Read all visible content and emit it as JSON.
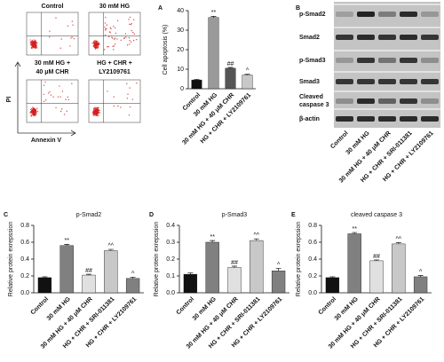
{
  "flow_cytometry": {
    "labels": [
      [
        "Control"
      ],
      [
        "30 mM HG"
      ],
      [
        "30 mM HG +",
        "40 μM CHR"
      ],
      [
        "HG + CHR +",
        "LY2109761"
      ]
    ],
    "y_label": "PI",
    "x_label": "Annexin V"
  },
  "western_blot": {
    "panel": "B",
    "rows": [
      "p-Smad2",
      "Smad2",
      "p-Smad3",
      "Smad3",
      [
        "Cleaved",
        "caspase 3"
      ],
      "β-actin"
    ],
    "columns": [
      "Control",
      "30 mM HG",
      "30 mM HG + 40 μM CHR",
      "HG + CHR + SRI-011381",
      "HG + CHR + LY2109761"
    ]
  },
  "chart_data": [
    {
      "type": "bar",
      "panel": "A",
      "y_label": "Cell apoptosis (%)",
      "categories": [
        "Control",
        "30 mM HG",
        "30 mM HG + 40 μM CHR",
        "HG + CHR + LY2109761"
      ],
      "values": [
        4.5,
        36.5,
        10.5,
        7
      ],
      "errors": [
        0.3,
        0.6,
        0.4,
        0.4
      ],
      "annotations": [
        null,
        "**",
        "##",
        "^"
      ],
      "colors": [
        "#111111",
        "#9a9a9a",
        "#555555",
        "#c8c8c8"
      ],
      "ylim": [
        0,
        40
      ],
      "yticks": [
        0,
        10,
        20,
        30,
        40
      ]
    },
    {
      "type": "bar",
      "panel": "C",
      "title": "p-Smad2",
      "y_label": "Relative protein exrepssion",
      "categories": [
        "Control",
        "30 mM HG",
        "30 mM HG + 40 μM CHR",
        "HG + CHR + SRI-011381",
        "HG + CHR + LY2109761"
      ],
      "values": [
        0.18,
        0.56,
        0.21,
        0.5,
        0.17
      ],
      "errors": [
        0.01,
        0.015,
        0.01,
        0.015,
        0.015
      ],
      "annotations": [
        null,
        "**",
        "##",
        "^^",
        "^"
      ],
      "colors": [
        "#111111",
        "#808080",
        "#e0e0e0",
        "#c8c8c8",
        "#808080"
      ],
      "ylim": [
        0,
        0.8
      ],
      "yticks": [
        {
          "value": 0,
          "label": "0.0"
        },
        0.2,
        0.4,
        0.6,
        0.8
      ]
    },
    {
      "type": "bar",
      "panel": "D",
      "title": "p-Smad3",
      "y_label": "Relative protein exrepssion",
      "categories": [
        "Control",
        "30 mM HG",
        "30 mM HG + 40 μM CHR",
        "HG + CHR + SRI-011381",
        "HG + CHR + LY2109761"
      ],
      "values": [
        0.11,
        0.3,
        0.15,
        0.31,
        0.13
      ],
      "errors": [
        0.008,
        0.01,
        0.008,
        0.01,
        0.015
      ],
      "annotations": [
        null,
        "**",
        "##",
        "^^",
        "^"
      ],
      "colors": [
        "#111111",
        "#808080",
        "#e0e0e0",
        "#c8c8c8",
        "#808080"
      ],
      "ylim": [
        0,
        0.4
      ],
      "yticks": [
        {
          "value": 0,
          "label": "0.0"
        },
        0.1,
        0.2,
        0.3,
        0.4
      ]
    },
    {
      "type": "bar",
      "panel": "E",
      "title": "cleaved caspase 3",
      "y_label": "Relative protein exrepssion",
      "categories": [
        "Control",
        "30 mM HG",
        "30 mM HG + 40 μM CHR",
        "HG + CHR + SRI-011381",
        "HG + CHR + LY2109761"
      ],
      "values": [
        0.18,
        0.7,
        0.38,
        0.58,
        0.19
      ],
      "errors": [
        0.01,
        0.015,
        0.01,
        0.015,
        0.015
      ],
      "annotations": [
        null,
        "**",
        "##",
        "^^",
        "^"
      ],
      "colors": [
        "#111111",
        "#808080",
        "#e0e0e0",
        "#c8c8c8",
        "#808080"
      ],
      "ylim": [
        0,
        0.8
      ],
      "yticks": [
        {
          "value": 0,
          "label": "0.0"
        },
        0.2,
        0.4,
        0.6,
        0.8
      ]
    }
  ]
}
